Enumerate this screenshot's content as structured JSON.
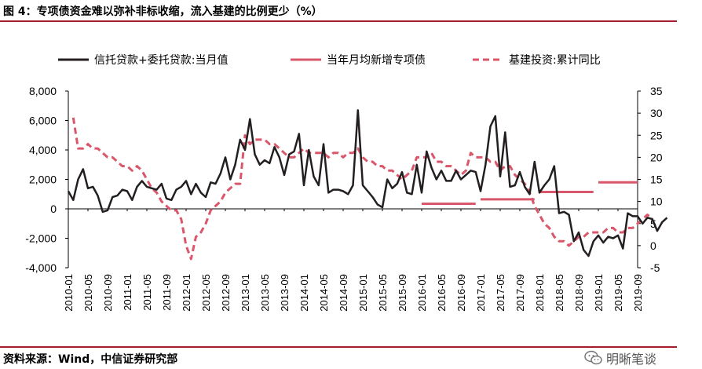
{
  "title": "图 4：专项债资金难以弥补非标收缩，流入基建的比例更少（%）",
  "source": "资料来源：Wind，中信证券研究部",
  "watermark": "明晰笔谈",
  "chart_data": {
    "type": "line",
    "grid": false,
    "legend_placement": "top",
    "colors": {
      "trust": "#231f20",
      "bond": "#d9566b",
      "infra": "#d9566b",
      "rule": "#a31d2c"
    },
    "y_left": {
      "ylim": [
        -4000,
        8000
      ],
      "ticks": [
        "8,000",
        "6,000",
        "4,000",
        "2,000",
        "0",
        "-2,000",
        "-4,000"
      ],
      "tick_values": [
        8000,
        6000,
        4000,
        2000,
        0,
        -2000,
        -4000
      ]
    },
    "y_right": {
      "ylim": [
        -5,
        35
      ],
      "ticks": [
        "35",
        "30",
        "25",
        "20",
        "15",
        "10",
        "5",
        "0",
        "-5"
      ],
      "tick_values": [
        35,
        30,
        25,
        20,
        15,
        10,
        5,
        0,
        -5
      ]
    },
    "x_ticks": [
      "2010-01",
      "2010-05",
      "2010-09",
      "2011-01",
      "2011-05",
      "2011-09",
      "2012-01",
      "2012-05",
      "2012-09",
      "2013-01",
      "2013-05",
      "2013-09",
      "2014-01",
      "2014-05",
      "2014-09",
      "2015-01",
      "2015-05",
      "2015-09",
      "2016-01",
      "2016-05",
      "2016-09",
      "2017-01",
      "2017-05",
      "2017-09",
      "2018-01",
      "2018-05",
      "2018-09",
      "2019-01",
      "2019-05",
      "2019-09"
    ],
    "series": [
      {
        "name": "信托贷款+委托贷款:当月值",
        "axis": "left",
        "style": "solid",
        "start": "2010-01",
        "values": [
          1200,
          600,
          2000,
          2700,
          1400,
          1500,
          900,
          -200,
          -100,
          800,
          900,
          1300,
          1200,
          600,
          1500,
          1900,
          1500,
          1400,
          1300,
          1700,
          700,
          600,
          1300,
          1500,
          1900,
          1000,
          1700,
          1100,
          800,
          1800,
          1700,
          2400,
          3500,
          2000,
          3000,
          4700,
          4000,
          6100,
          3700,
          3000,
          3300,
          3100,
          4200,
          3500,
          2300,
          3700,
          3900,
          5100,
          1600,
          4000,
          2200,
          1600,
          4400,
          1100,
          1300,
          1300,
          1200,
          1000,
          1600,
          6700,
          1600,
          1200,
          800,
          300,
          100,
          2000,
          1400,
          1700,
          2500,
          1100,
          1000,
          3000,
          1100,
          3900,
          2800,
          2000,
          2600,
          1900,
          1900,
          2600,
          2000,
          2300,
          2600,
          2500,
          1200,
          3000,
          5600,
          6300,
          2200,
          5200,
          1500,
          1600,
          2500,
          1500,
          1000,
          3200,
          1100,
          1600,
          2000,
          2900,
          -300,
          -200,
          -400,
          -2200,
          -1600,
          -2800,
          -3200,
          -2200,
          -1800,
          -2300,
          -1900,
          -2000,
          -1800,
          -2700,
          -300,
          -500,
          -500,
          -1000,
          -600,
          -700,
          -1500,
          -900,
          -600
        ]
      },
      {
        "name": "当年月均新增专项债",
        "axis": "left",
        "style": "solid",
        "segments": [
          {
            "start": "2016-01",
            "end": "2016-12",
            "value": 350
          },
          {
            "start": "2017-01",
            "end": "2017-12",
            "value": 650
          },
          {
            "start": "2018-01",
            "end": "2018-12",
            "value": 1150
          },
          {
            "start": "2019-01",
            "end": "2019-09",
            "value": 1800
          }
        ]
      },
      {
        "name": "基建投资:累计同比",
        "axis": "right",
        "style": "dashed",
        "start": "2010-02",
        "values": [
          29,
          22,
          22,
          23,
          22,
          22,
          21,
          20,
          20,
          19,
          18,
          18,
          17,
          18,
          17,
          15,
          13,
          12,
          10,
          9,
          8,
          8,
          6,
          0,
          -3,
          2,
          3,
          5,
          8,
          9,
          10,
          12,
          13,
          14,
          14,
          25,
          23,
          24,
          24,
          24,
          23,
          23,
          22,
          21,
          20,
          20,
          21,
          22,
          21,
          21,
          21,
          21,
          20,
          21,
          21,
          20,
          21,
          21,
          22,
          20,
          19,
          19,
          18,
          18,
          17,
          17,
          16,
          15,
          16,
          17,
          20,
          20,
          20,
          21,
          19,
          19,
          18,
          18,
          17,
          16,
          17,
          21,
          20,
          20,
          20,
          19,
          19,
          17,
          18,
          18,
          16,
          15,
          14,
          12,
          9,
          7,
          5,
          4,
          2,
          1,
          1,
          0,
          1,
          2,
          2,
          3,
          3,
          3,
          3,
          4,
          4,
          3,
          3,
          4,
          4,
          5,
          6,
          7,
          6
        ]
      }
    ]
  }
}
